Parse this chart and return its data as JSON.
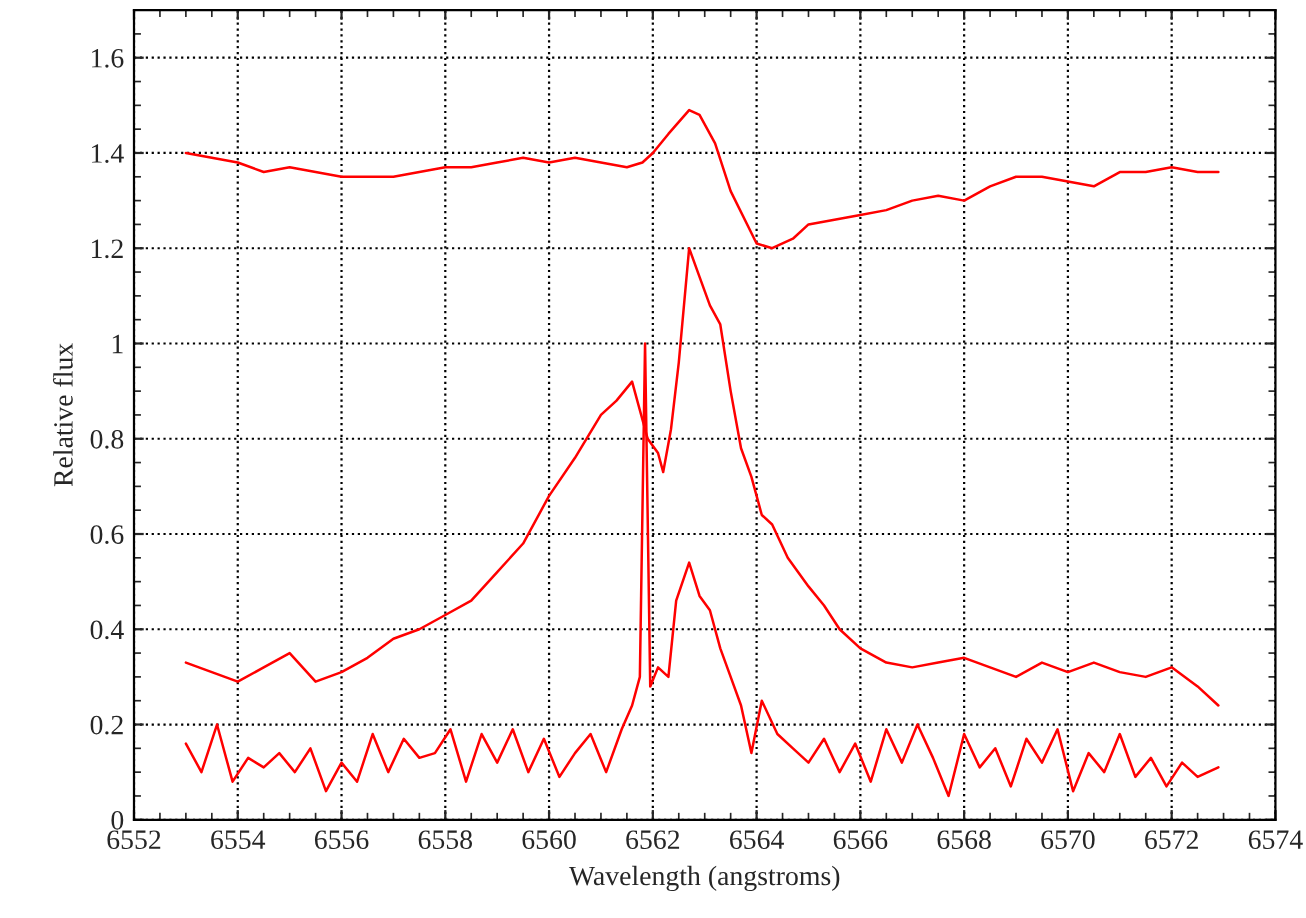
{
  "chart_data": {
    "type": "line",
    "xlabel": "Wavelength (angstroms)",
    "ylabel": "Relative flux",
    "xlim": [
      6552,
      6574
    ],
    "ylim": [
      0,
      1.7
    ],
    "xticks": [
      6552,
      6554,
      6556,
      6558,
      6560,
      6562,
      6564,
      6566,
      6568,
      6570,
      6572,
      6574
    ],
    "yticks": [
      0,
      0.2,
      0.4,
      0.6,
      0.8,
      1,
      1.2,
      1.4,
      1.6
    ],
    "grid": true,
    "marker": "none",
    "line_style": "solid",
    "series": [
      {
        "color": "#ff0000",
        "x": [
          6553,
          6553.5,
          6554,
          6554.5,
          6555,
          6555.5,
          6556,
          6556.5,
          6557,
          6557.5,
          6558,
          6558.5,
          6559,
          6559.5,
          6560,
          6560.5,
          6561,
          6561.5,
          6561.8,
          6562,
          6562.3,
          6562.7,
          6562.9,
          6563.2,
          6563.5,
          6564,
          6564.3,
          6564.7,
          6565,
          6565.5,
          6566,
          6566.5,
          6567,
          6567.5,
          6568,
          6568.5,
          6569,
          6569.5,
          6570,
          6570.5,
          6571,
          6571.5,
          6572,
          6572.5,
          6572.9
        ],
        "values": [
          1.4,
          1.39,
          1.38,
          1.36,
          1.37,
          1.36,
          1.35,
          1.35,
          1.35,
          1.36,
          1.37,
          1.37,
          1.38,
          1.39,
          1.38,
          1.39,
          1.38,
          1.37,
          1.38,
          1.4,
          1.44,
          1.49,
          1.48,
          1.42,
          1.32,
          1.21,
          1.2,
          1.22,
          1.25,
          1.26,
          1.27,
          1.28,
          1.3,
          1.31,
          1.3,
          1.33,
          1.35,
          1.35,
          1.34,
          1.33,
          1.36,
          1.36,
          1.37,
          1.36,
          1.36
        ]
      },
      {
        "color": "#ff0000",
        "x": [
          6553,
          6553.5,
          6554,
          6554.5,
          6555,
          6555.5,
          6556,
          6556.5,
          6557,
          6557.5,
          6558,
          6558.5,
          6559,
          6559.5,
          6560,
          6560.5,
          6561,
          6561.3,
          6561.6,
          6561.9,
          6562.1,
          6562.2,
          6562.35,
          6562.5,
          6562.7,
          6562.9,
          6563.1,
          6563.3,
          6563.5,
          6563.7,
          6563.9,
          6564.1,
          6564.3,
          6564.6,
          6565,
          6565.3,
          6565.6,
          6566,
          6566.5,
          6567,
          6567.5,
          6568,
          6568.5,
          6569,
          6569.5,
          6570,
          6570.5,
          6571,
          6571.5,
          6572,
          6572.5,
          6572.9
        ],
        "values": [
          0.33,
          0.31,
          0.29,
          0.32,
          0.35,
          0.29,
          0.31,
          0.34,
          0.38,
          0.4,
          0.43,
          0.46,
          0.52,
          0.58,
          0.68,
          0.76,
          0.85,
          0.88,
          0.92,
          0.8,
          0.77,
          0.73,
          0.82,
          0.96,
          1.2,
          1.14,
          1.08,
          1.04,
          0.9,
          0.78,
          0.72,
          0.64,
          0.62,
          0.55,
          0.49,
          0.45,
          0.4,
          0.36,
          0.33,
          0.32,
          0.33,
          0.34,
          0.32,
          0.3,
          0.33,
          0.31,
          0.33,
          0.31,
          0.3,
          0.32,
          0.28,
          0.24
        ]
      },
      {
        "color": "#ff0000",
        "x": [
          6553,
          6553.3,
          6553.6,
          6553.9,
          6554.2,
          6554.5,
          6554.8,
          6555.1,
          6555.4,
          6555.7,
          6556,
          6556.3,
          6556.6,
          6556.9,
          6557.2,
          6557.5,
          6557.8,
          6558.1,
          6558.4,
          6558.7,
          6559,
          6559.3,
          6559.6,
          6559.9,
          6560.2,
          6560.5,
          6560.8,
          6561.1,
          6561.4,
          6561.6,
          6561.75,
          6561.85,
          6561.95,
          6562.1,
          6562.3,
          6562.45,
          6562.7,
          6562.9,
          6563.1,
          6563.3,
          6563.5,
          6563.7,
          6563.9,
          6564.1,
          6564.4,
          6564.7,
          6565,
          6565.3,
          6565.6,
          6565.9,
          6566.2,
          6566.5,
          6566.8,
          6567.1,
          6567.4,
          6567.7,
          6568,
          6568.3,
          6568.6,
          6568.9,
          6569.2,
          6569.5,
          6569.8,
          6570.1,
          6570.4,
          6570.7,
          6571,
          6571.3,
          6571.6,
          6571.9,
          6572.2,
          6572.5,
          6572.9
        ],
        "values": [
          0.16,
          0.1,
          0.2,
          0.08,
          0.13,
          0.11,
          0.14,
          0.1,
          0.15,
          0.06,
          0.12,
          0.08,
          0.18,
          0.1,
          0.17,
          0.13,
          0.14,
          0.19,
          0.08,
          0.18,
          0.12,
          0.19,
          0.1,
          0.17,
          0.09,
          0.14,
          0.18,
          0.1,
          0.19,
          0.24,
          0.3,
          1.0,
          0.28,
          0.32,
          0.3,
          0.46,
          0.54,
          0.47,
          0.44,
          0.36,
          0.3,
          0.24,
          0.14,
          0.25,
          0.18,
          0.15,
          0.12,
          0.17,
          0.1,
          0.16,
          0.08,
          0.19,
          0.12,
          0.2,
          0.13,
          0.05,
          0.18,
          0.11,
          0.15,
          0.07,
          0.17,
          0.12,
          0.19,
          0.06,
          0.14,
          0.1,
          0.18,
          0.09,
          0.13,
          0.07,
          0.12,
          0.09,
          0.11
        ]
      }
    ]
  }
}
